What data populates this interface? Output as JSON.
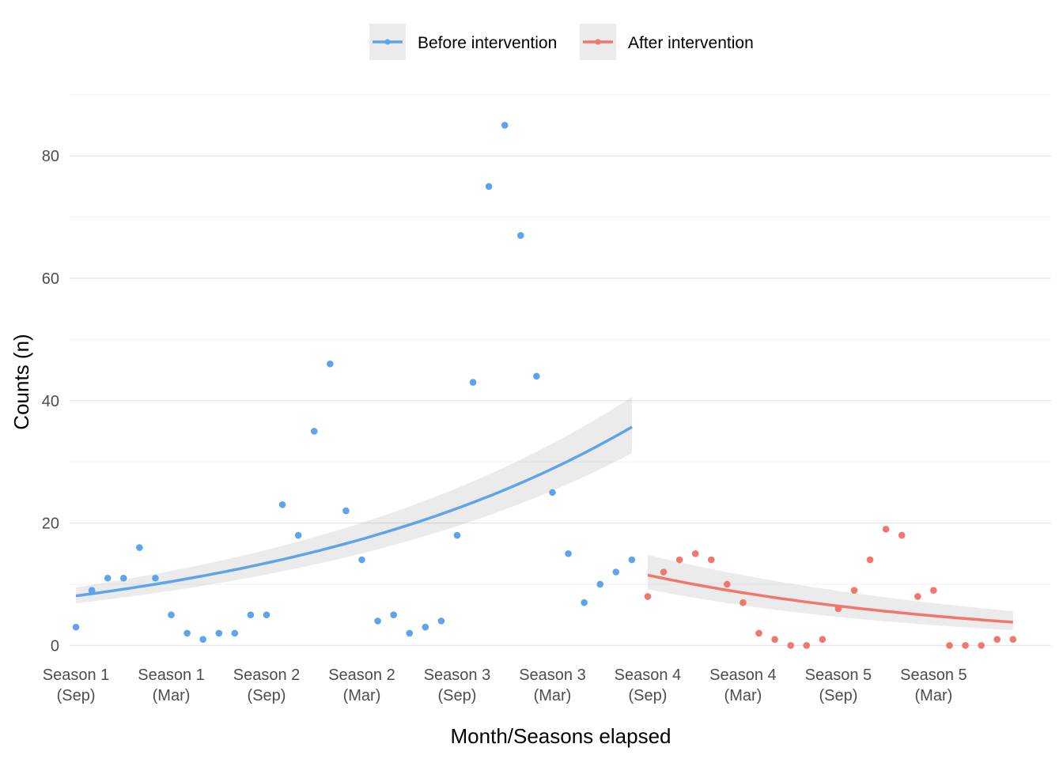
{
  "chart_data": {
    "type": "scatter",
    "xlabel": "Month/Seasons elapsed",
    "ylabel": "Counts (n)",
    "xlim": [
      0.6,
      62.4
    ],
    "ylim": [
      -1.5,
      91
    ],
    "y_ticks": [
      0,
      20,
      40,
      60,
      80
    ],
    "x_ticks": [
      {
        "x": 1,
        "line1": "Season 1",
        "line2": "(Sep)"
      },
      {
        "x": 7,
        "line1": "Season 1",
        "line2": "(Mar)"
      },
      {
        "x": 13,
        "line1": "Season 2",
        "line2": "(Sep)"
      },
      {
        "x": 19,
        "line1": "Season 2",
        "line2": "(Mar)"
      },
      {
        "x": 25,
        "line1": "Season 3",
        "line2": "(Sep)"
      },
      {
        "x": 31,
        "line1": "Season 3",
        "line2": "(Mar)"
      },
      {
        "x": 37,
        "line1": "Season 4",
        "line2": "(Sep)"
      },
      {
        "x": 43,
        "line1": "Season 4",
        "line2": "(Mar)"
      },
      {
        "x": 49,
        "line1": "Season 5",
        "line2": "(Sep)"
      },
      {
        "x": 55,
        "line1": "Season 5",
        "line2": "(Mar)"
      }
    ],
    "grid": true,
    "legend_position": "top",
    "series": [
      {
        "name": "Before intervention",
        "color": "#5DA5E8",
        "x_start": 1,
        "values": [
          3,
          9,
          11,
          11,
          16,
          11,
          5,
          2,
          1,
          2,
          2,
          5,
          5,
          23,
          18,
          35,
          46,
          22,
          14,
          4,
          5,
          2,
          3,
          4,
          18,
          43,
          75,
          85,
          67,
          44,
          25,
          15,
          7,
          10,
          12,
          14
        ],
        "trend": {
          "start": 8.1,
          "end": 35.7
        },
        "ci": {
          "start": [
            6.9,
            9.5
          ],
          "end": [
            31.4,
            40.6
          ]
        }
      },
      {
        "name": "After intervention",
        "color": "#F0776E",
        "x_start": 37,
        "values": [
          8,
          12,
          14,
          15,
          14,
          10,
          7,
          2,
          1,
          0,
          0,
          1,
          6,
          9,
          14,
          19,
          18,
          8,
          9,
          0,
          0,
          0,
          1,
          1
        ],
        "trend": {
          "start": 11.5,
          "end": 3.8
        },
        "ci": {
          "start": [
            9.2,
            14.8
          ],
          "end": [
            2.5,
            5.6
          ]
        }
      }
    ]
  }
}
